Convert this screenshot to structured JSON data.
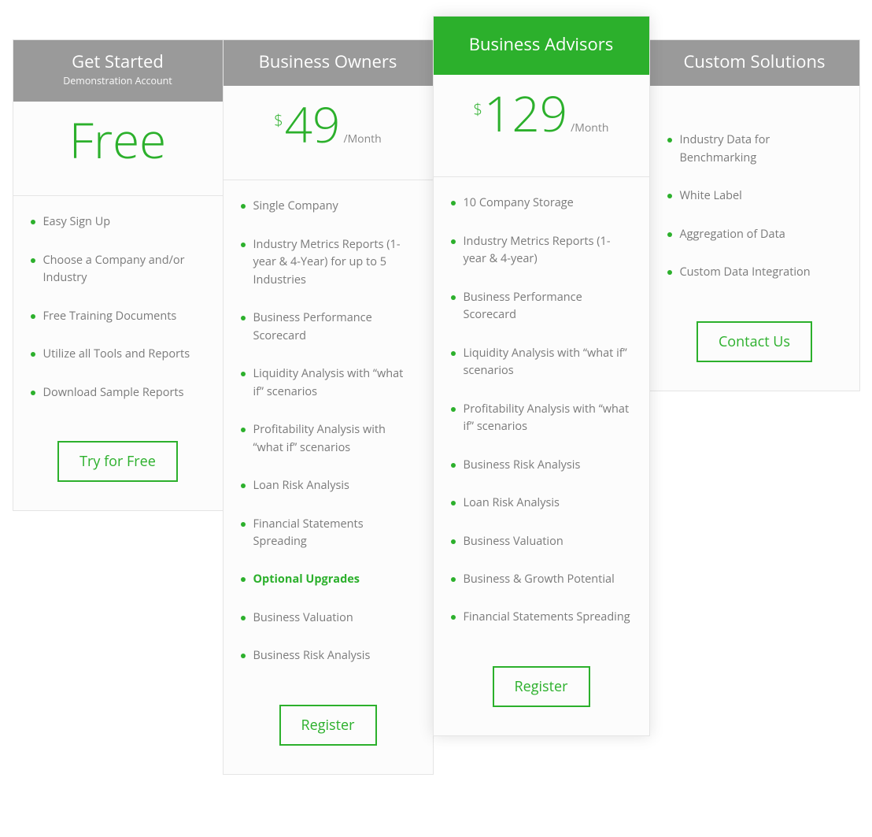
{
  "colors": {
    "accent": "#2cb02c",
    "header_bg": "#9a9a9a",
    "featured_header_bg": "#2cb02c",
    "text_muted": "#7a7a7a",
    "border": "#e5e5e5",
    "panel_bg": "#fcfcfc"
  },
  "plans": [
    {
      "id": "free",
      "title": "Get Started",
      "subtitle": "Demonstration Account",
      "price_free_label": "Free",
      "features": [
        "Easy Sign Up",
        "Choose a Company ﻿and/or Industry",
        "Free Training Documents",
        "Utilize all Tools and Reports",
        "Download Sample Reports"
      ],
      "cta": "Try for Free"
    },
    {
      "id": "owners",
      "title": "Business Owners",
      "currency": "$",
      "amount": "49",
      "period": "/Month",
      "features": [
        "Single Company",
        "Industry Metrics Reports (1-year & 4-Year) for up to 5 Industries",
        "Business Performance Scorecard",
        "Liquidity Analysis with “what if” scenarios",
        "Profitability Analysis with “what if” scenarios",
        "Loan Risk Analysis",
        "Financial Statements Spreading"
      ],
      "upgrade_heading": "Optional Upgrades",
      "upgrade_features": [
        "Business Valuation",
        "Business Risk Analysis"
      ],
      "cta": "Register"
    },
    {
      "id": "advisors",
      "featured": true,
      "title": "Business Advisors",
      "currency": "$",
      "amount": "129",
      "period": "/Month",
      "features": [
        "10 Company Storage",
        "Industry Metrics Reports (1-year & 4-year)",
        "Business Performance Scorecard",
        "Liquidity Analysis with “what if” scenarios",
        "Profitability Analysis with “what if” scenarios",
        "Business Risk Analysis",
        "Loan Risk Analysis",
        "Business Valuation",
        "Business & Growth Potential",
        "Financial Statements Spreading"
      ],
      "cta": "Register"
    },
    {
      "id": "custom",
      "title": "Custom Solutions",
      "no_price": true,
      "features": [
        "Industry Data for Benchmarking",
        "White Label",
        "Aggregation of Data",
        "Custom Data Integration"
      ],
      "cta": "Contact Us"
    }
  ]
}
